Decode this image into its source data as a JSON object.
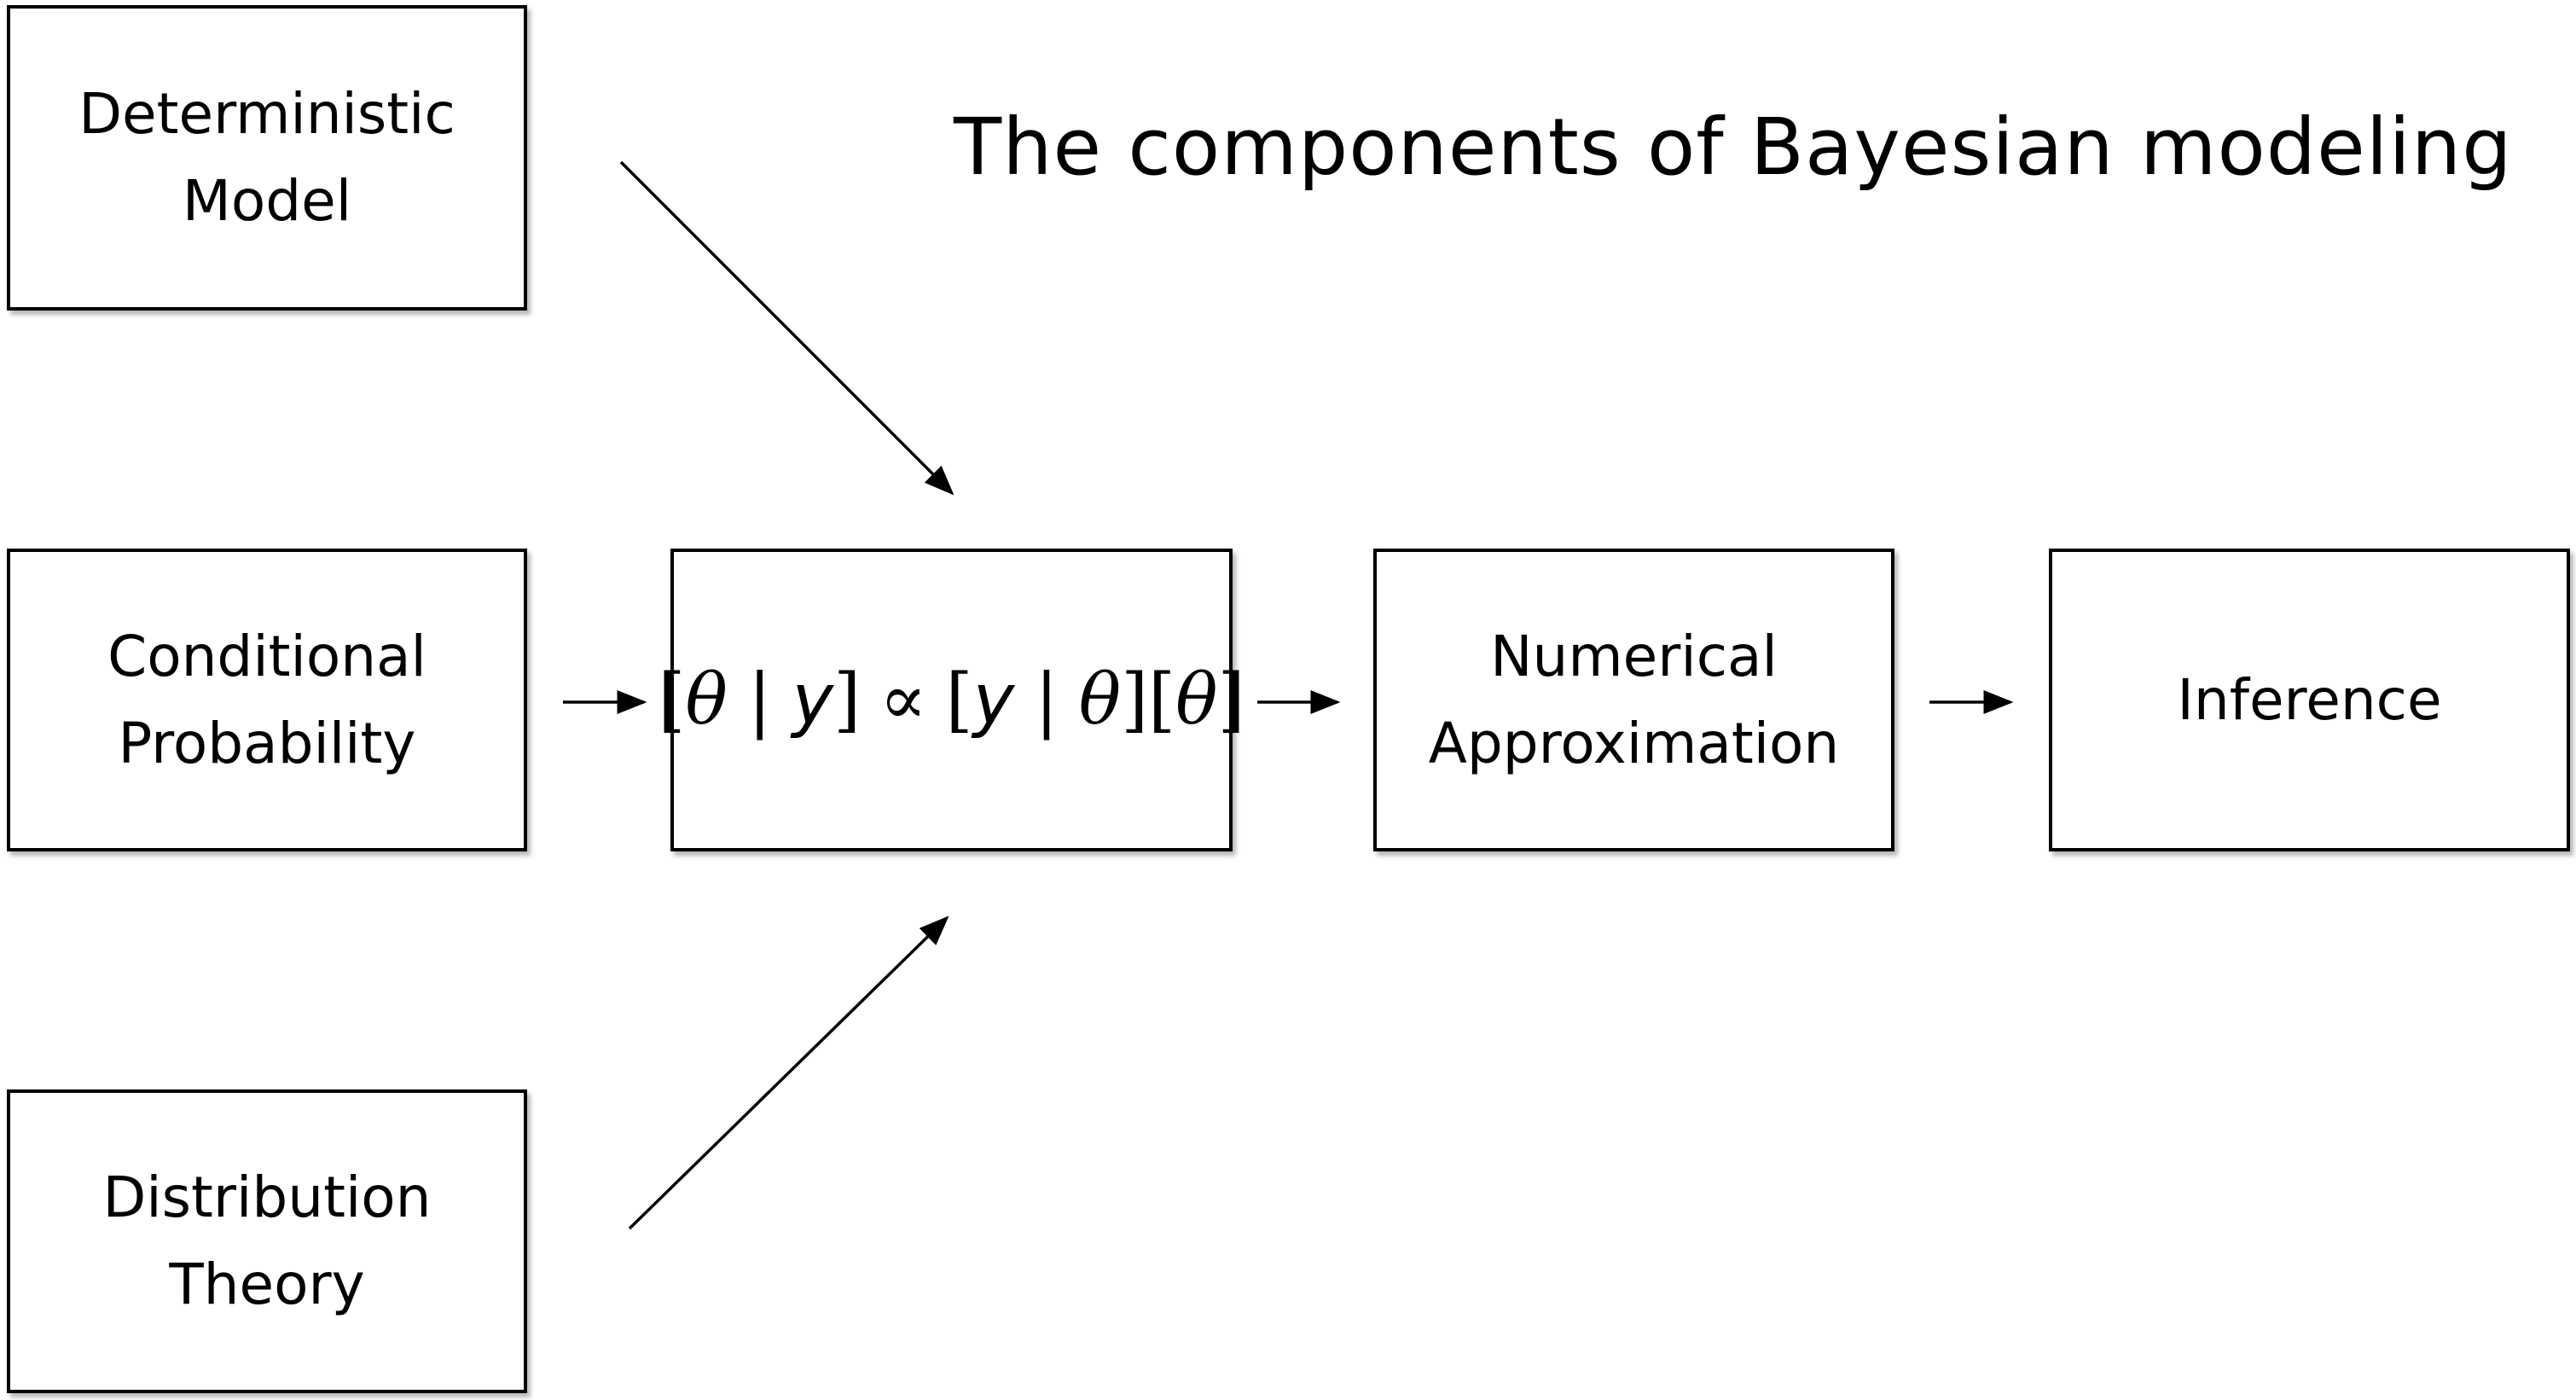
{
  "diagram": {
    "title": "The components of  Bayesian modeling",
    "boxes": {
      "deterministic_model": "Deterministic\nModel",
      "conditional_probability": "Conditional\nProbability",
      "distribution_theory": "Distribution\nTheory",
      "numerical_approximation": "Numerical\nApproximation",
      "inference": "Inference"
    },
    "formula": {
      "lbr1": "[",
      "theta1": "θ",
      "bar1": "|",
      "y1": "y",
      "rbr1": "]",
      "prop": "∝",
      "lbr2": "[",
      "y2": "y",
      "bar2": "|",
      "theta2": "θ",
      "rbr2": "]",
      "lbr3": "[",
      "theta3": "θ",
      "rbr3": "]"
    }
  }
}
